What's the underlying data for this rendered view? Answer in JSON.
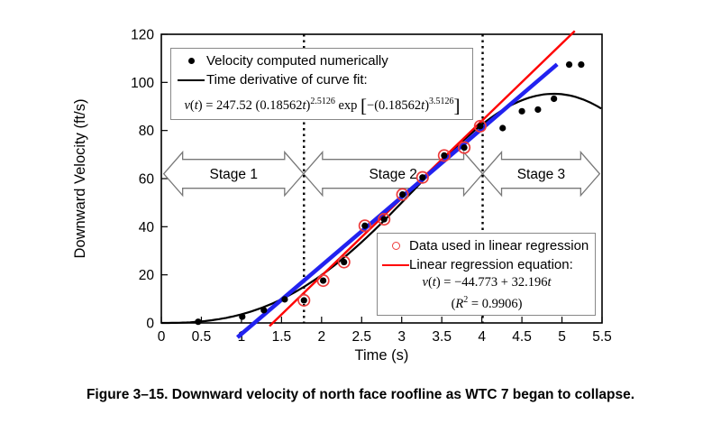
{
  "caption": "Figure 3–15.  Downward velocity of north face roofline as WTC 7 began to collapse.",
  "chart_data": {
    "type": "scatter",
    "title": "",
    "xlabel": "Time (s)",
    "ylabel": "Downward Velocity (ft/s)",
    "xlim": [
      0,
      5.5
    ],
    "ylim": [
      0,
      120
    ],
    "grid": false,
    "x_tick_labels": [
      "0",
      "0.5",
      "1",
      "1.5",
      "2",
      "2.5",
      "3",
      "3.5",
      "4",
      "4.5",
      "5",
      "5.5"
    ],
    "y_tick_labels": [
      "0",
      "20",
      "40",
      "60",
      "80",
      "100",
      "120"
    ],
    "stage_boundaries_t": [
      1.78,
      4.01
    ],
    "stage_band_center_v": 62,
    "stages": [
      {
        "label": "Stage 1",
        "from_t": 0.03,
        "to_t": 1.775
      },
      {
        "label": "Stage 2",
        "from_t": 1.775,
        "to_t": 4.01
      },
      {
        "label": "Stage 3",
        "from_t": 4.01,
        "to_t": 5.47
      }
    ],
    "series": [
      {
        "name": "Velocity computed numerically",
        "type": "scatter",
        "marker": "filled-black-dot",
        "points": [
          [
            0.46,
            0.5
          ],
          [
            1.01,
            2.6
          ],
          [
            1.28,
            5.3
          ],
          [
            1.54,
            9.8
          ],
          [
            1.78,
            9.4
          ],
          [
            2.02,
            17.6
          ],
          [
            2.28,
            25.3
          ],
          [
            2.54,
            40.4
          ],
          [
            2.78,
            43.1
          ],
          [
            3.01,
            53.4
          ],
          [
            3.26,
            60.5
          ],
          [
            3.53,
            69.6
          ],
          [
            3.78,
            72.9
          ],
          [
            3.98,
            81.8
          ],
          [
            4.26,
            81.0
          ],
          [
            4.5,
            88.0
          ],
          [
            4.7,
            88.7
          ],
          [
            4.9,
            93.2
          ],
          [
            5.09,
            107.4
          ],
          [
            5.24,
            107.4
          ]
        ]
      },
      {
        "name": "Data used in linear regression",
        "type": "scatter",
        "marker": "red-open-circle",
        "points": [
          [
            1.78,
            9.4
          ],
          [
            2.02,
            17.6
          ],
          [
            2.28,
            25.3
          ],
          [
            2.54,
            40.4
          ],
          [
            2.78,
            43.1
          ],
          [
            3.01,
            53.4
          ],
          [
            3.26,
            60.5
          ],
          [
            3.53,
            69.6
          ],
          [
            3.78,
            72.9
          ],
          [
            3.98,
            81.8
          ]
        ]
      },
      {
        "name": "Time derivative of curve fit",
        "type": "curve",
        "color": "#000000",
        "formula": "v(t) = 247.52(0.18562t)^2.5126 exp[−(0.18562t)^3.5126]",
        "params": {
          "a": 247.52,
          "b": 0.18562,
          "p": 2.5126,
          "q": 3.5126
        },
        "t_range": [
          0,
          5.5
        ]
      },
      {
        "name": "Linear regression equation",
        "type": "line",
        "color": "#ff0000",
        "slope": 32.196,
        "intercept": -44.773,
        "r_squared": 0.9906,
        "t_range": [
          1.35,
          5.16
        ]
      },
      {
        "name": "Blue reference line",
        "type": "segment",
        "color": "#2222f0",
        "endpoints": [
          [
            0.95,
            -6.0
          ],
          [
            4.94,
            107.5
          ]
        ]
      }
    ],
    "colors": {
      "regression_red": "#ff0000",
      "circle_red": "#ee3b3b",
      "reference_blue": "#2222f0",
      "dot_black": "#000000",
      "arrow_gray": "#787878"
    }
  },
  "legend_fit": {
    "item1": "Velocity computed numerically",
    "item2": "Time derivative of curve fit:",
    "equation_parts": [
      {
        "t": "v",
        "i": 1
      },
      {
        "t": "("
      },
      {
        "t": "t",
        "i": 1
      },
      {
        "t": ") = 247.52 (0.18562"
      },
      {
        "t": "t",
        "i": 1
      },
      {
        "t": ")"
      },
      {
        "t": "2.5126",
        "sup": 1
      },
      {
        "t": " exp "
      },
      {
        "t": "[",
        "br": 1
      },
      {
        "t": "−(0.18562"
      },
      {
        "t": "t",
        "i": 1
      },
      {
        "t": ")"
      },
      {
        "t": "3.5126",
        "sup": 1
      },
      {
        "t": "]",
        "br": 1
      }
    ]
  },
  "legend_reg": {
    "item1": "Data used in linear regression",
    "item2": "Linear regression equation:",
    "equation_parts": [
      {
        "t": "v",
        "i": 1
      },
      {
        "t": "("
      },
      {
        "t": "t",
        "i": 1
      },
      {
        "t": ") = −44.773 + 32.196"
      },
      {
        "t": "t",
        "i": 1
      }
    ],
    "r2_parts": [
      {
        "t": "("
      },
      {
        "t": "R",
        "i": 1
      },
      {
        "t": "2",
        "sup": 1
      },
      {
        "t": " = 0.9906)"
      }
    ]
  }
}
